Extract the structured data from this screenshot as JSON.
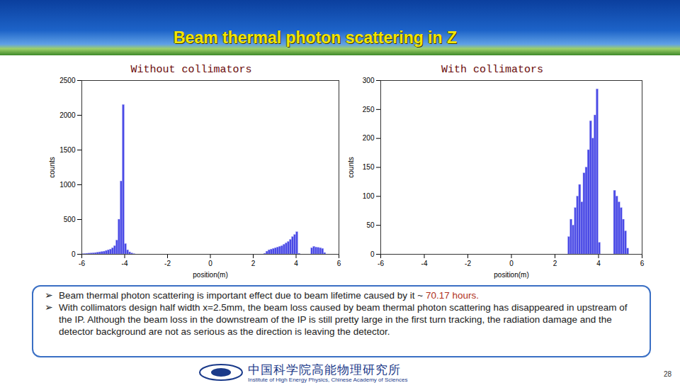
{
  "slide_title": "Beam thermal photon scattering in Z",
  "bullets": [
    {
      "text": "Beam thermal photon scattering is important effect due to beam lifetime caused by it ~ ",
      "highlight": "70.17 hours."
    },
    {
      "text": "With collimators design half width x=2.5mm, the beam loss caused by beam thermal photon scattering has disappeared in upstream of the IP. Although the beam loss in the downstream of the IP is still pretty large in the first turn tracking, the radiation damage and the detector background are not as serious as the direction is leaving the detector."
    }
  ],
  "footer": {
    "institute_cn": "中国科学院高能物理研究所",
    "institute_en": "Institute of High Energy Physics, Chinese Academy of Sciences"
  },
  "page_number": 28,
  "chart_data": [
    {
      "type": "histogram",
      "title": "Without collimators",
      "x_label": "position(m)",
      "y_label": "counts",
      "color": "#4a4ae6",
      "bins": [
        -6,
        -5.9,
        -5.8,
        -5.7,
        -5.6,
        -5.5,
        -5.4,
        -5.3,
        -5.2,
        -5.1,
        -5,
        -4.9,
        -4.8,
        -4.7,
        -4.6,
        -4.5,
        -4.4,
        -4.3,
        -4.2,
        -4.1,
        -4,
        -3.9,
        -3.8,
        -3.7,
        -3.6,
        -3.5,
        -3.4,
        -3.3,
        -3.2,
        -3.1,
        -3,
        -2.9,
        -2.8,
        -2.7,
        -2.6,
        -2.5,
        -2.4,
        -2.3,
        -2.2,
        -2.1,
        -2,
        -1.9,
        -1.8,
        -1.7,
        -1.6,
        -1.5,
        -1.4,
        -1.3,
        -1.2,
        -1.1,
        -1,
        -0.9,
        -0.8,
        -0.7,
        -0.6,
        -0.5,
        -0.4,
        -0.3,
        -0.2,
        -0.1,
        0,
        0.1,
        0.2,
        0.3,
        0.4,
        0.5,
        0.6,
        0.7,
        0.8,
        0.9,
        1,
        1.1,
        1.2,
        1.3,
        1.4,
        1.5,
        1.6,
        1.7,
        1.8,
        1.9,
        2,
        2.1,
        2.2,
        2.3,
        2.4,
        2.5,
        2.6,
        2.7,
        2.8,
        2.9,
        3,
        3.1,
        3.2,
        3.3,
        3.4,
        3.5,
        3.6,
        3.7,
        3.8,
        3.9,
        4,
        4.1,
        4.2,
        4.3,
        4.4,
        4.5,
        4.6,
        4.7,
        4.8,
        4.9,
        5,
        5.1,
        5.2,
        5.3,
        5.4,
        5.5,
        5.6,
        5.7,
        5.8,
        5.9,
        6
      ],
      "values": [
        5,
        8,
        10,
        12,
        15,
        18,
        20,
        25,
        30,
        35,
        40,
        50,
        60,
        70,
        90,
        120,
        200,
        500,
        1050,
        2150,
        150,
        60,
        30,
        15,
        5,
        0,
        0,
        0,
        0,
        0,
        0,
        0,
        0,
        0,
        0,
        0,
        0,
        0,
        0,
        0,
        0,
        0,
        0,
        0,
        0,
        0,
        0,
        0,
        0,
        0,
        0,
        0,
        0,
        0,
        0,
        0,
        0,
        0,
        0,
        0,
        0,
        0,
        0,
        0,
        0,
        0,
        0,
        0,
        0,
        0,
        0,
        0,
        0,
        0,
        0,
        0,
        0,
        0,
        0,
        0,
        0,
        0,
        0,
        0,
        0,
        10,
        40,
        60,
        70,
        80,
        90,
        100,
        110,
        120,
        140,
        160,
        180,
        210,
        250,
        280,
        320,
        10,
        0,
        0,
        0,
        0,
        0,
        90,
        110,
        100,
        95,
        90,
        80,
        20,
        0,
        0,
        0,
        0,
        0,
        0
      ],
      "xlim": [
        -6,
        6
      ],
      "xticks": [
        -6,
        -4,
        -2,
        0,
        2,
        4,
        6
      ],
      "ylim": [
        0,
        2500
      ],
      "yticks": [
        0,
        500,
        1000,
        1500,
        2000,
        2500
      ]
    },
    {
      "type": "histogram",
      "title": "With collimators",
      "x_label": "position(m)",
      "y_label": "counts",
      "color": "#4a4ae6",
      "bins": [
        -6,
        -5.9,
        -5.8,
        -5.7,
        -5.6,
        -5.5,
        -5.4,
        -5.3,
        -5.2,
        -5.1,
        -5,
        -4.9,
        -4.8,
        -4.7,
        -4.6,
        -4.5,
        -4.4,
        -4.3,
        -4.2,
        -4.1,
        -4,
        -3.9,
        -3.8,
        -3.7,
        -3.6,
        -3.5,
        -3.4,
        -3.3,
        -3.2,
        -3.1,
        -3,
        -2.9,
        -2.8,
        -2.7,
        -2.6,
        -2.5,
        -2.4,
        -2.3,
        -2.2,
        -2.1,
        -2,
        -1.9,
        -1.8,
        -1.7,
        -1.6,
        -1.5,
        -1.4,
        -1.3,
        -1.2,
        -1.1,
        -1,
        -0.9,
        -0.8,
        -0.7,
        -0.6,
        -0.5,
        -0.4,
        -0.3,
        -0.2,
        -0.1,
        0,
        0.1,
        0.2,
        0.3,
        0.4,
        0.5,
        0.6,
        0.7,
        0.8,
        0.9,
        1,
        1.1,
        1.2,
        1.3,
        1.4,
        1.5,
        1.6,
        1.7,
        1.8,
        1.9,
        2,
        2.1,
        2.2,
        2.3,
        2.4,
        2.5,
        2.6,
        2.7,
        2.8,
        2.9,
        3,
        3.1,
        3.2,
        3.3,
        3.4,
        3.5,
        3.6,
        3.7,
        3.8,
        3.9,
        4,
        4.1,
        4.2,
        4.3,
        4.4,
        4.5,
        4.6,
        4.7,
        4.8,
        4.9,
        5,
        5.1,
        5.2,
        5.3,
        5.4,
        5.5,
        5.6,
        5.7,
        5.8,
        5.9,
        6
      ],
      "values": [
        0,
        0,
        0,
        0,
        0,
        0,
        0,
        0,
        0,
        0,
        0,
        0,
        0,
        0,
        0,
        0,
        0,
        0,
        0,
        0,
        0,
        0,
        0,
        0,
        0,
        0,
        0,
        0,
        0,
        0,
        0,
        0,
        0,
        0,
        0,
        0,
        0,
        0,
        0,
        0,
        0,
        0,
        0,
        0,
        0,
        0,
        0,
        0,
        0,
        0,
        0,
        0,
        0,
        0,
        0,
        0,
        0,
        0,
        0,
        0,
        0,
        0,
        0,
        0,
        0,
        0,
        0,
        0,
        0,
        0,
        0,
        0,
        0,
        0,
        0,
        0,
        0,
        0,
        0,
        0,
        0,
        0,
        0,
        0,
        0,
        0,
        30,
        60,
        50,
        80,
        100,
        120,
        90,
        140,
        150,
        180,
        230,
        200,
        240,
        285,
        20,
        0,
        0,
        0,
        0,
        0,
        0,
        110,
        100,
        90,
        80,
        60,
        40,
        10,
        0,
        0,
        0,
        0,
        0,
        0
      ],
      "xlim": [
        -6,
        6
      ],
      "xticks": [
        -6,
        -4,
        -2,
        0,
        2,
        4,
        6
      ],
      "ylim": [
        0,
        300
      ],
      "yticks": [
        0,
        50,
        100,
        150,
        200,
        250,
        300
      ]
    }
  ]
}
